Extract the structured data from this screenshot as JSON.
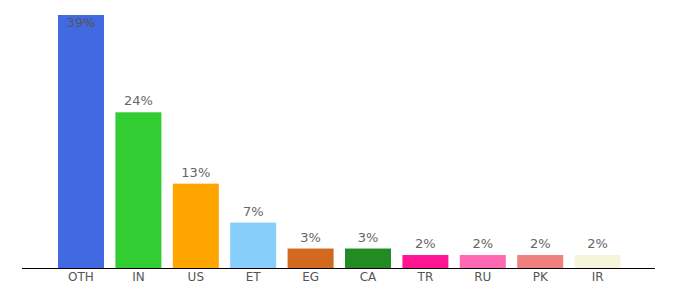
{
  "chart_data": {
    "type": "bar",
    "categories": [
      "OTH",
      "IN",
      "US",
      "ET",
      "EG",
      "CA",
      "TR",
      "RU",
      "PK",
      "IR"
    ],
    "values": [
      39,
      24,
      13,
      7,
      3,
      3,
      2,
      2,
      2,
      2
    ],
    "value_labels": [
      "39%",
      "24%",
      "13%",
      "7%",
      "3%",
      "3%",
      "2%",
      "2%",
      "2%",
      "2%"
    ],
    "colors": [
      "#4169e1",
      "#32cd32",
      "#ffa500",
      "#87cefa",
      "#d2691e",
      "#228b22",
      "#ff1493",
      "#ff69b4",
      "#f08080",
      "#f5f5dc"
    ],
    "ylim": [
      0,
      39
    ],
    "data_labels": true,
    "tick_labels": "x"
  }
}
